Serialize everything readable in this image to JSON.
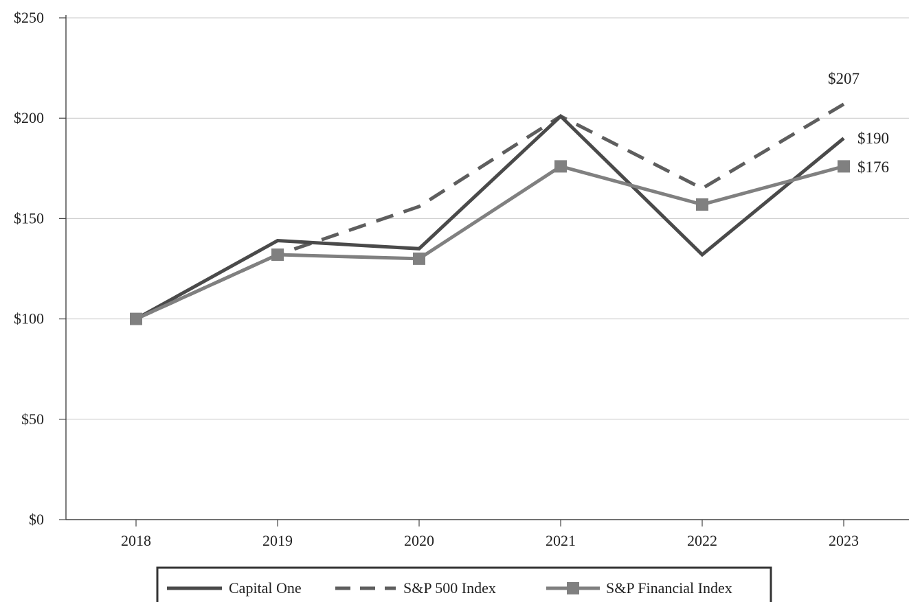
{
  "chart_data": {
    "type": "line",
    "x": [
      "2018",
      "2019",
      "2020",
      "2021",
      "2022",
      "2023"
    ],
    "ylim": [
      0,
      250
    ],
    "y_ticks": [
      0,
      50,
      100,
      150,
      200,
      250
    ],
    "y_tick_labels": [
      "$0",
      "$50",
      "$100",
      "$150",
      "$200",
      "$250"
    ],
    "grid": "horizontal",
    "legend_position": "bottom-center",
    "series": [
      {
        "name": "Capital One",
        "values": [
          100,
          139,
          135,
          201,
          132,
          190
        ],
        "style": "solid",
        "color": "#4a4a4a",
        "end_label": "$190"
      },
      {
        "name": "S&P 500 Index",
        "values": [
          100,
          132,
          156,
          201,
          165,
          207
        ],
        "style": "dashed",
        "color": "#5e5e5e",
        "end_label": "$207"
      },
      {
        "name": "S&P Financial Index",
        "values": [
          100,
          132,
          130,
          176,
          157,
          176
        ],
        "style": "solid-square-markers",
        "color": "#808080",
        "end_label": "$176"
      }
    ]
  }
}
